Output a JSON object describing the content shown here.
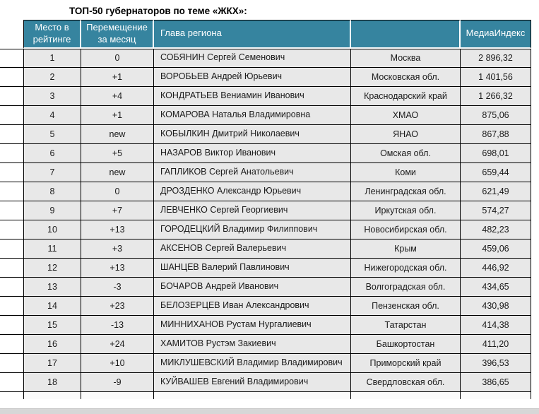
{
  "title": "ТОП-50 губернаторов по теме «ЖКХ»:",
  "colors": {
    "header_bg": "#36849f",
    "header_text": "#ffffff",
    "row_bg": "#e8e8e8",
    "border": "#000000",
    "bottom_strip": "#d7d7d7"
  },
  "table": {
    "headers": {
      "rank": "Место в рейтинге",
      "move": "Перемещение за месяц",
      "name": "Глава региона",
      "region": "",
      "index": "МедиаИндекс"
    },
    "rows": [
      {
        "rank": "1",
        "move": "0",
        "name": "СОБЯНИН Сергей Семенович",
        "region": "Москва",
        "index": "2 896,32"
      },
      {
        "rank": "2",
        "move": "+1",
        "name": "ВОРОБЬЕВ Андрей Юрьевич",
        "region": "Московская обл.",
        "index": "1 401,56"
      },
      {
        "rank": "3",
        "move": "+4",
        "name": "КОНДРАТЬЕВ Вениамин Иванович",
        "region": "Краснодарский край",
        "index": "1 266,32"
      },
      {
        "rank": "4",
        "move": "+1",
        "name": "КОМАРОВА Наталья Владимировна",
        "region": "ХМАО",
        "index": "875,06"
      },
      {
        "rank": "5",
        "move": "new",
        "name": "КОБЫЛКИН Дмитрий Николаевич",
        "region": "ЯНАО",
        "index": "867,88"
      },
      {
        "rank": "6",
        "move": "+5",
        "name": "НАЗАРОВ Виктор Иванович",
        "region": "Омская обл.",
        "index": "698,01"
      },
      {
        "rank": "7",
        "move": "new",
        "name": "ГАПЛИКОВ Сергей Анатольевич",
        "region": "Коми",
        "index": "659,44"
      },
      {
        "rank": "8",
        "move": "0",
        "name": "ДРОЗДЕНКО Александр Юрьевич",
        "region": "Ленинградская обл.",
        "index": "621,49"
      },
      {
        "rank": "9",
        "move": "+7",
        "name": "ЛЕВЧЕНКО Сергей Георгиевич",
        "region": "Иркутская обл.",
        "index": "574,27"
      },
      {
        "rank": "10",
        "move": "+13",
        "name": "ГОРОДЕЦКИЙ Владимир Филиппович",
        "region": "Новосибирская обл.",
        "index": "482,23"
      },
      {
        "rank": "11",
        "move": "+3",
        "name": "АКСЕНОВ Сергей Валерьевич",
        "region": "Крым",
        "index": "459,06"
      },
      {
        "rank": "12",
        "move": "+13",
        "name": "ШАНЦЕВ Валерий Павлинович",
        "region": "Нижегородская обл.",
        "index": "446,92"
      },
      {
        "rank": "13",
        "move": "-3",
        "name": "БОЧАРОВ Андрей Иванович",
        "region": "Волгоградская обл.",
        "index": "434,65"
      },
      {
        "rank": "14",
        "move": "+23",
        "name": "БЕЛОЗЕРЦЕВ Иван Александрович",
        "region": "Пензенская обл.",
        "index": "430,98"
      },
      {
        "rank": "15",
        "move": "-13",
        "name": "МИННИХАНОВ Рустам Нургалиевич",
        "region": "Татарстан",
        "index": "414,38"
      },
      {
        "rank": "16",
        "move": "+24",
        "name": "ХАМИТОВ Рустэм Закиевич",
        "region": "Башкортостан",
        "index": "411,20"
      },
      {
        "rank": "17",
        "move": "+10",
        "name": "МИКЛУШЕВСКИЙ Владимир Владимирович",
        "region": "Приморский край",
        "index": "396,53"
      },
      {
        "rank": "18",
        "move": "-9",
        "name": "КУЙВАШЕВ Евгений Владимирович",
        "region": "Свердловская обл.",
        "index": "386,65"
      }
    ]
  }
}
